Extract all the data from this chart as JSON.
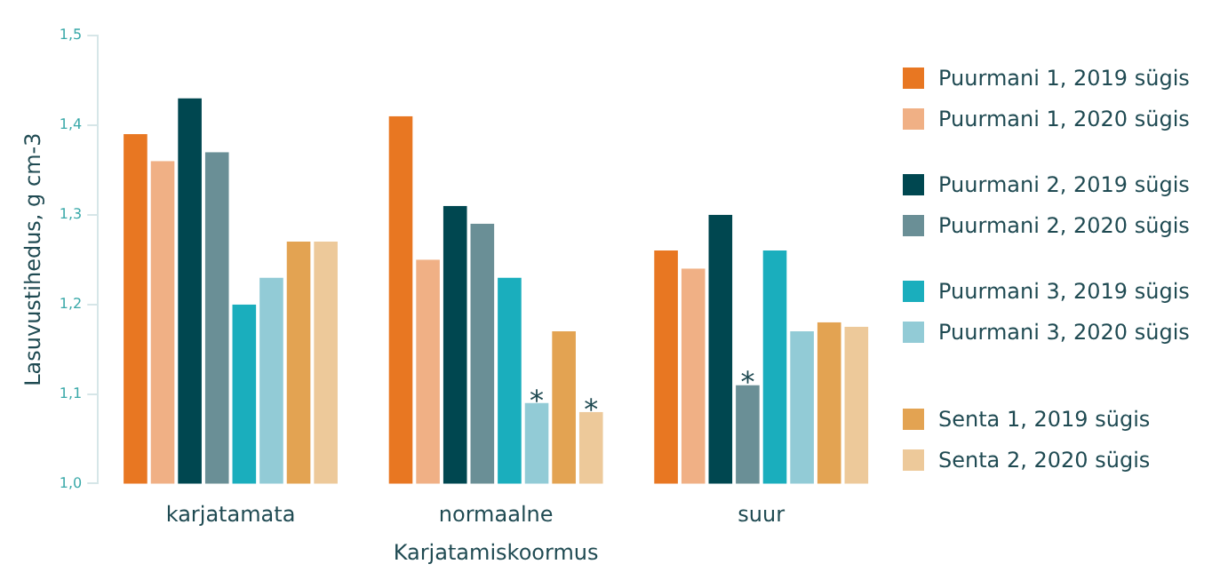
{
  "chart_data": {
    "type": "bar",
    "xlabel": "Karjatamiskoormus",
    "ylabel": "Lasuvustihedus, g cm-3",
    "categories": [
      "karjatamata",
      "normaalne",
      "suur"
    ],
    "series": [
      {
        "name": "Puurmani 1, 2019 sügis",
        "color": "#e87722",
        "values": [
          1.39,
          1.41,
          1.26
        ]
      },
      {
        "name": "Puurmani 1, 2020 sügis",
        "color": "#f0b085",
        "values": [
          1.36,
          1.25,
          1.24
        ]
      },
      {
        "name": "Puurmani 2, 2019 sügis",
        "color": "#004750",
        "values": [
          1.43,
          1.31,
          1.3
        ]
      },
      {
        "name": "Puurmani 2, 2020 sügis",
        "color": "#6a8f96",
        "values": [
          1.37,
          1.29,
          1.11
        ],
        "value_labels": [
          null,
          null,
          "*"
        ]
      },
      {
        "name": "Puurmani 3, 2019 sügis",
        "color": "#1aaebd",
        "values": [
          1.2,
          1.23,
          1.26
        ]
      },
      {
        "name": "Puurmani 3, 2020 sügis",
        "color": "#92cbd6",
        "values": [
          1.23,
          1.09,
          1.17
        ],
        "value_labels": [
          null,
          "*",
          null
        ]
      },
      {
        "name": "Senta 1, 2019 sügis",
        "color": "#e3a352",
        "values": [
          1.27,
          1.17,
          1.18
        ]
      },
      {
        "name": "Senta 2, 2020 sügis",
        "color": "#edc99a",
        "values": [
          1.27,
          1.08,
          1.175
        ],
        "value_labels": [
          null,
          "*",
          null
        ]
      }
    ],
    "ylim": [
      1.0,
      1.5
    ],
    "yticks": [
      {
        "value": 1.0,
        "label": "1,0"
      },
      {
        "value": 1.1,
        "label": "1,1"
      },
      {
        "value": 1.2,
        "label": "1,2"
      },
      {
        "value": 1.3,
        "label": "1,3"
      },
      {
        "value": 1.4,
        "label": "1,4"
      },
      {
        "value": 1.5,
        "label": "1,5"
      }
    ],
    "grid": false,
    "legend": "right"
  }
}
